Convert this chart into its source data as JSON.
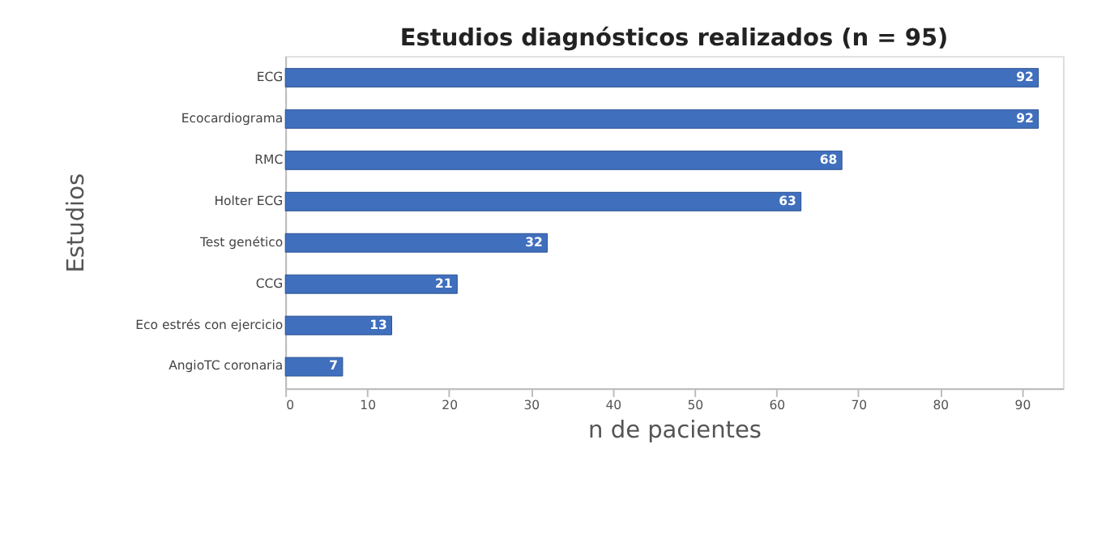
{
  "chart_data": {
    "type": "bar",
    "orientation": "horizontal",
    "title": "Estudios diagnósticos realizados (n = 95)",
    "xlabel": "n de pacientes",
    "ylabel": "Estudios",
    "categories": [
      "ECG",
      "Ecocardiograma",
      "RMC",
      "Holter ECG",
      "Test genético",
      "CCG",
      "Eco estrés con ejercicio",
      "AngioTC coronaria"
    ],
    "values": [
      92,
      92,
      68,
      63,
      32,
      21,
      13,
      7
    ],
    "color": "#3f6fbd",
    "xlim": [
      0,
      95
    ],
    "xticks": [
      0,
      10,
      20,
      30,
      40,
      50,
      60,
      70,
      80,
      90
    ],
    "grid": false,
    "data_labels": true
  }
}
